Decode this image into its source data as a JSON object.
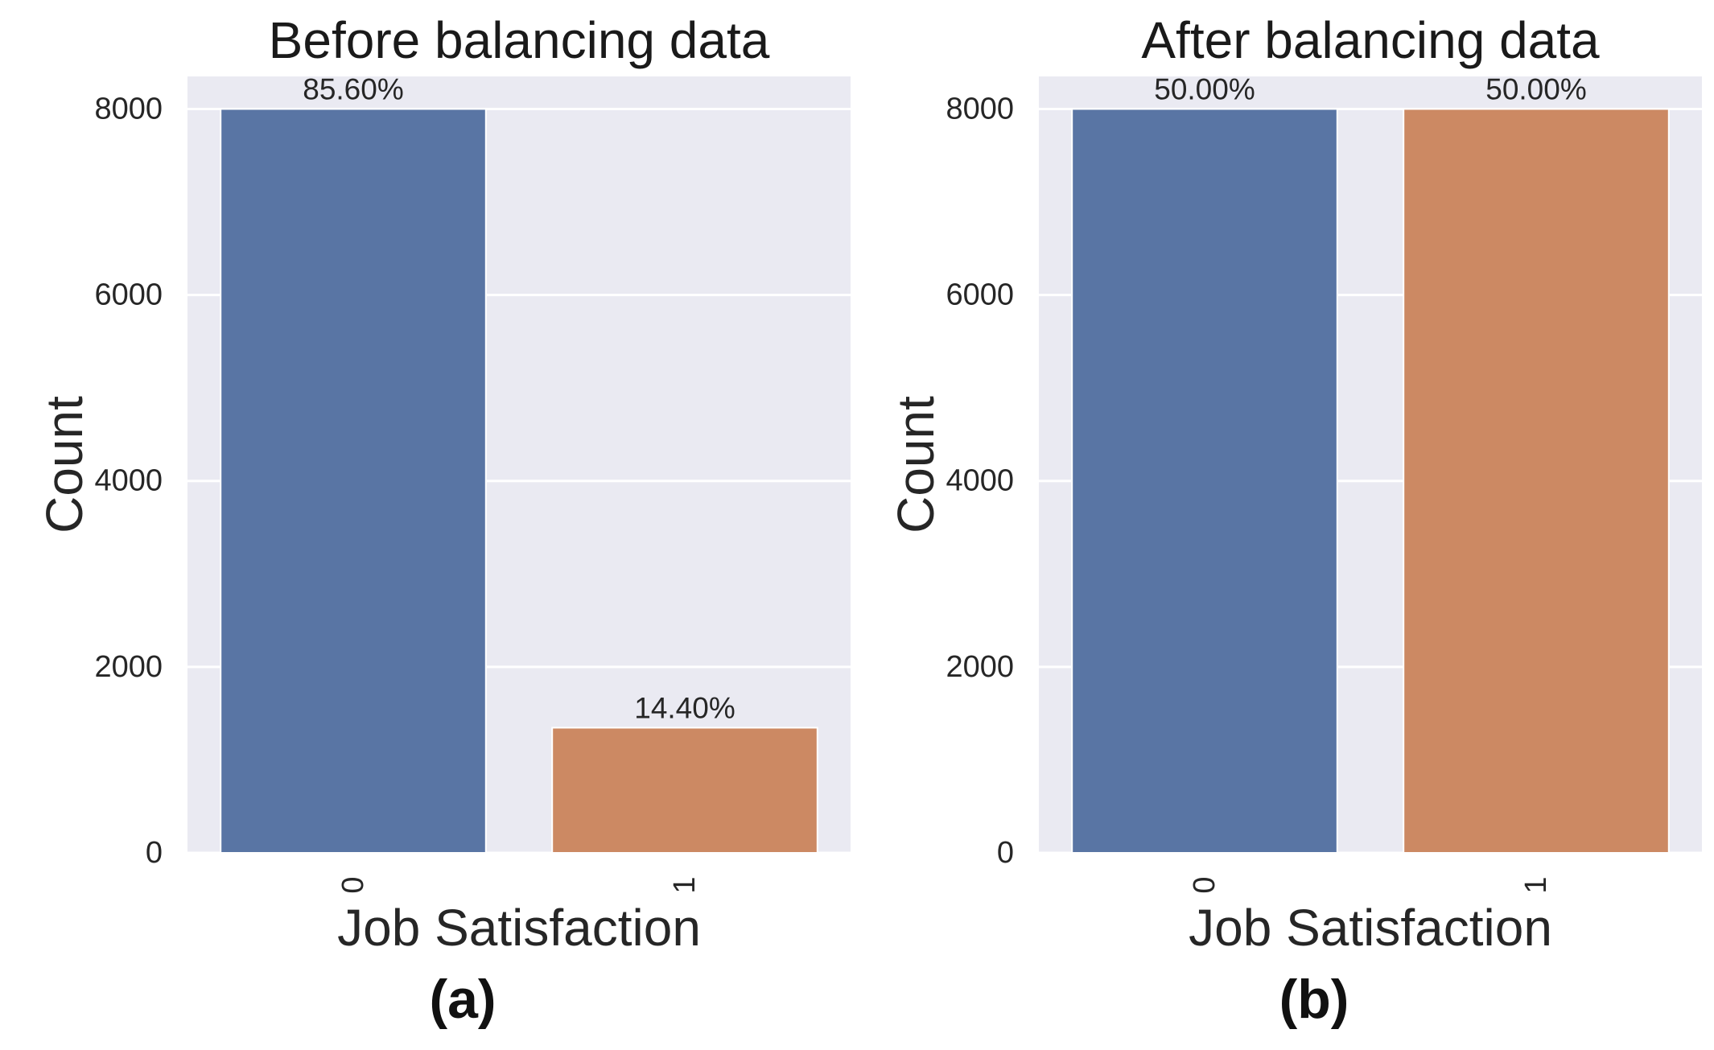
{
  "chart_data": [
    {
      "type": "bar",
      "title": "Before balancing data",
      "xlabel": "Job Satisfaction",
      "ylabel": "Count",
      "categories": [
        "0",
        "1"
      ],
      "values": [
        8000,
        1346
      ],
      "data_labels": [
        "85.60%",
        "14.40%"
      ],
      "bar_colors": [
        "#5975a4",
        "#cc8963"
      ],
      "ylim": [
        0,
        8350
      ],
      "yticks": [
        0,
        2000,
        4000,
        6000,
        8000
      ],
      "grid": true,
      "caption": "(a)"
    },
    {
      "type": "bar",
      "title": "After balancing data",
      "xlabel": "Job Satisfaction",
      "ylabel": "Count",
      "categories": [
        "0",
        "1"
      ],
      "values": [
        8000,
        8000
      ],
      "data_labels": [
        "50.00%",
        "50.00%"
      ],
      "bar_colors": [
        "#5975a4",
        "#cc8963"
      ],
      "ylim": [
        0,
        8350
      ],
      "yticks": [
        0,
        2000,
        4000,
        6000,
        8000
      ],
      "grid": true,
      "caption": "(b)"
    }
  ],
  "colors": {
    "plot_background": "#eaeaf2",
    "grid": "#ffffff",
    "text": "#262626"
  }
}
